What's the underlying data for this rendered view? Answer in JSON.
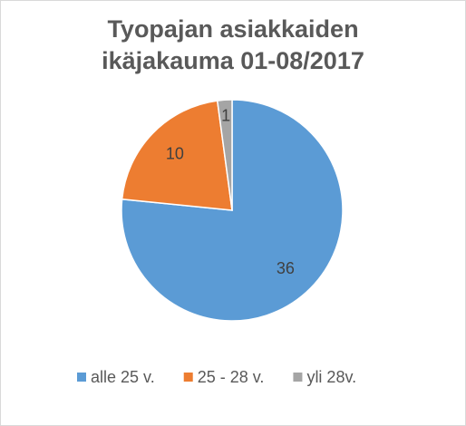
{
  "chart_data": {
    "type": "pie",
    "title": "Tyopajan asiakkaiden ikäjakauma 01-08/2017",
    "categories": [
      "alle 25 v.",
      "25 - 28 v.",
      "yli 28v."
    ],
    "values": [
      36,
      10,
      1
    ],
    "colors": [
      "#5b9bd5",
      "#ed7d31",
      "#a5a5a5"
    ],
    "legend": "bottom"
  }
}
